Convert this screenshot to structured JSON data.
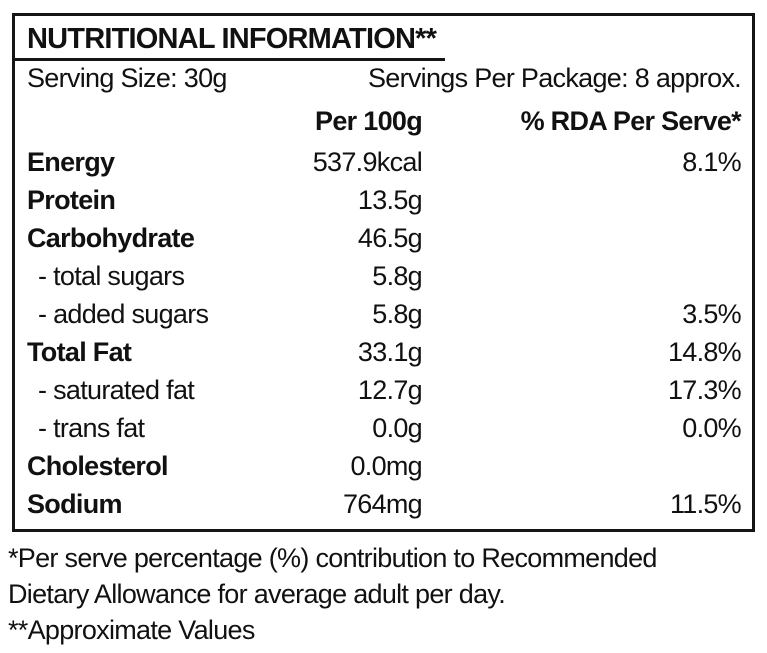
{
  "nutrition": {
    "title": "NUTRITIONAL INFORMATION**",
    "serving_size": "Serving Size: 30g",
    "servings_per_package": "Servings Per Package: 8 approx.",
    "columns": {
      "per_100g": "Per 100g",
      "rda_per_serve": "% RDA Per Serve*"
    },
    "rows": [
      {
        "name": "Energy",
        "per_100g": "537.9kcal",
        "rda": "8.1%"
      },
      {
        "name": "Protein",
        "per_100g": "13.5g",
        "rda": ""
      },
      {
        "name": "Carbohydrate",
        "per_100g": "46.5g",
        "rda": ""
      },
      {
        "name": "- total sugars",
        "per_100g": "5.8g",
        "rda": ""
      },
      {
        "name": "- added sugars",
        "per_100g": "5.8g",
        "rda": "3.5%"
      },
      {
        "name": "Total Fat",
        "per_100g": "33.1g",
        "rda": "14.8%"
      },
      {
        "name": "- saturated fat",
        "per_100g": "12.7g",
        "rda": "17.3%"
      },
      {
        "name": "- trans fat",
        "per_100g": "0.0g",
        "rda": "0.0%"
      },
      {
        "name": "Cholesterol",
        "per_100g": "0.0mg",
        "rda": ""
      },
      {
        "name": "Sodium",
        "per_100g": "764mg",
        "rda": "11.5%"
      }
    ],
    "footnotes": {
      "line1": "*Per serve percentage (%) contribution to Recommended",
      "line2": "Dietary Allowance for average adult per day.",
      "line3": "**Approximate Values"
    }
  },
  "colors": {
    "text": "#111111",
    "border": "#151515",
    "background": "#ffffff"
  }
}
